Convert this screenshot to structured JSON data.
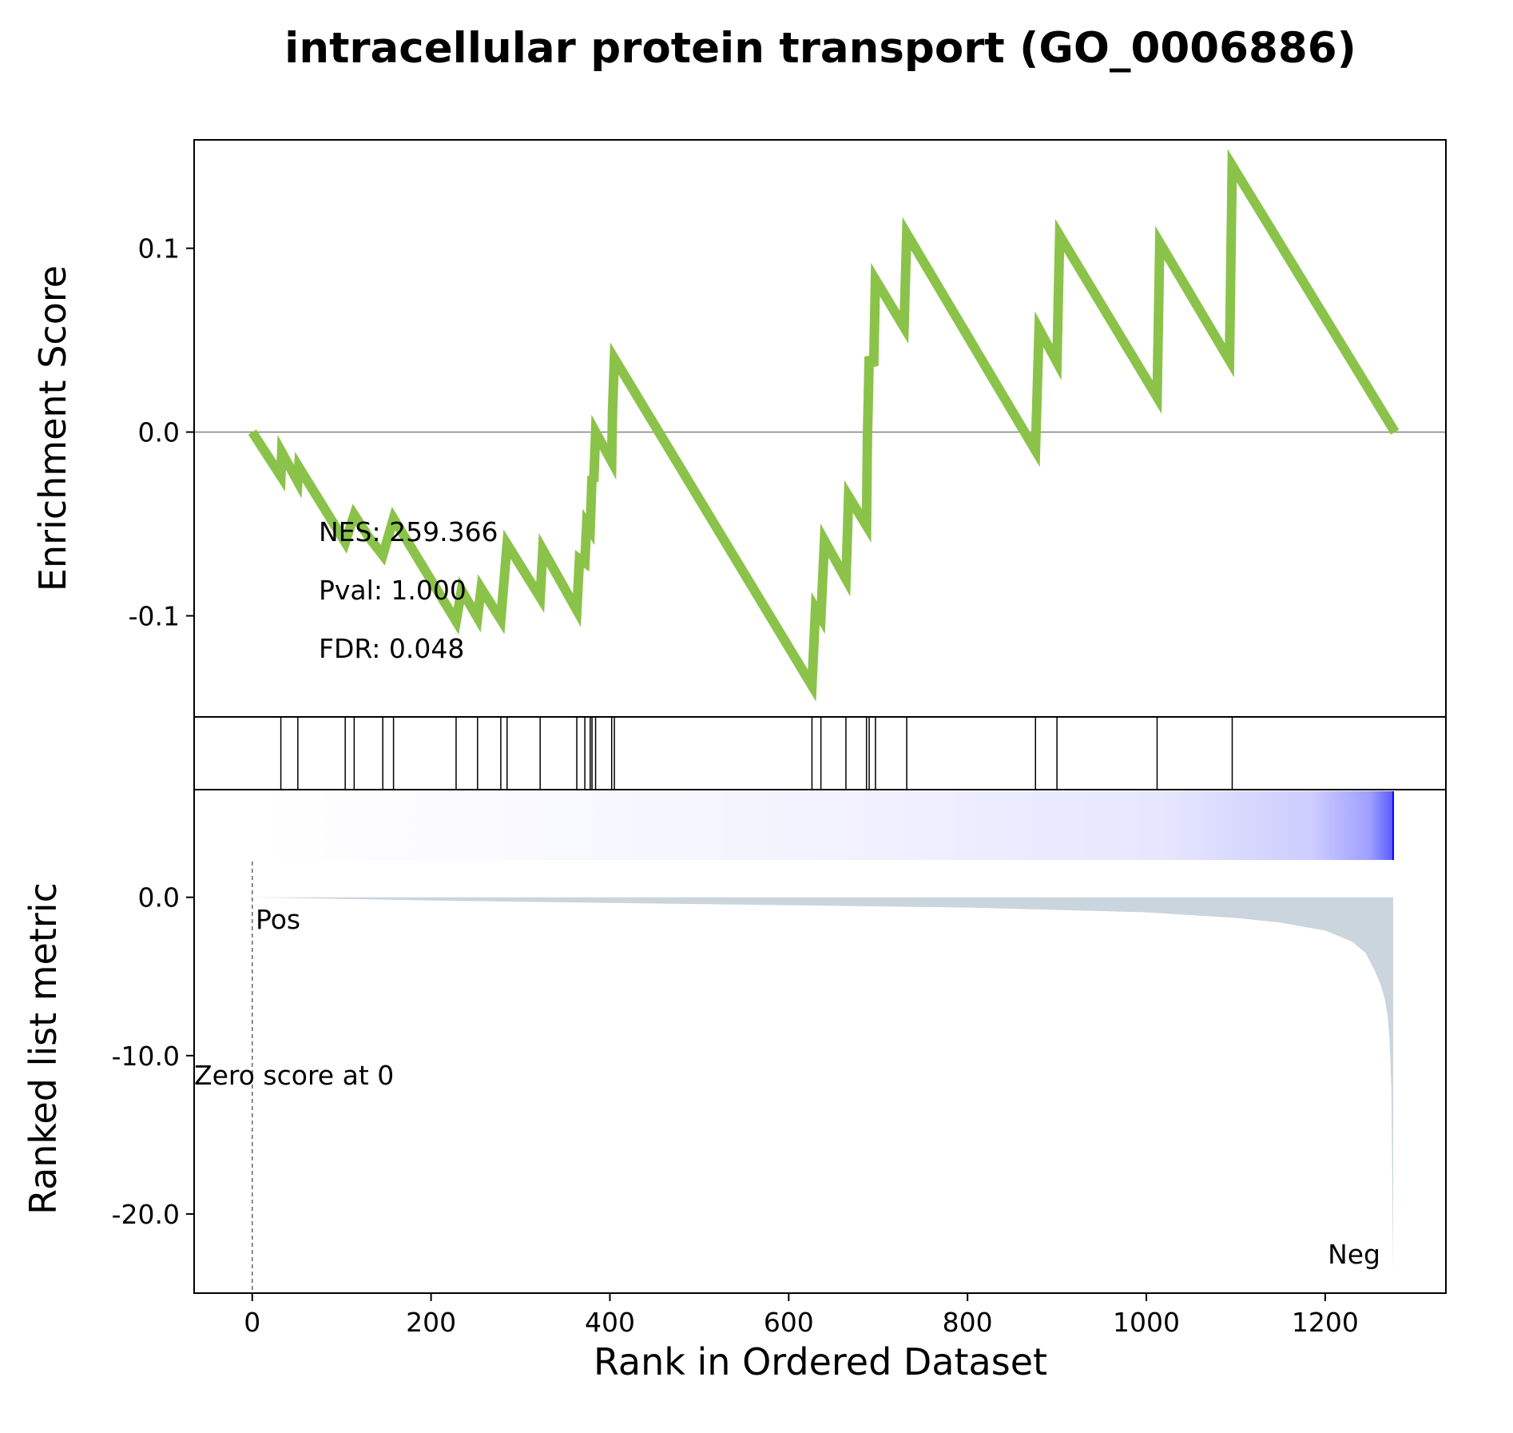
{
  "chart_data": {
    "type": "line",
    "title": "intracellular protein transport (GO_0006886)",
    "xlabel": "Rank in Ordered Dataset",
    "xlim": [
      -65,
      1335
    ],
    "xticks": [
      0,
      200,
      400,
      600,
      800,
      1000,
      1200
    ],
    "enrichment": {
      "ylabel": "Enrichment Score",
      "ylim": [
        -0.155,
        0.159
      ],
      "yticks": [
        0.1,
        0.0,
        -0.1
      ],
      "ytick_labels": [
        "0.1",
        "0.0",
        "-0.1"
      ],
      "zero_line": true,
      "line_color": "#8bc34a",
      "points": [
        [
          0,
          0.0
        ],
        [
          32,
          -0.024
        ],
        [
          33,
          -0.011
        ],
        [
          51,
          -0.027
        ],
        [
          52,
          -0.019
        ],
        [
          104,
          -0.06
        ],
        [
          114,
          -0.045
        ],
        [
          130,
          -0.057
        ],
        [
          146,
          -0.067
        ],
        [
          158,
          -0.047
        ],
        [
          228,
          -0.103
        ],
        [
          234,
          -0.086
        ],
        [
          252,
          -0.101
        ],
        [
          256,
          -0.085
        ],
        [
          278,
          -0.102
        ],
        [
          285,
          -0.061
        ],
        [
          322,
          -0.09
        ],
        [
          325,
          -0.064
        ],
        [
          363,
          -0.097
        ],
        [
          366,
          -0.069
        ],
        [
          372,
          -0.071
        ],
        [
          374,
          -0.05
        ],
        [
          378,
          -0.053
        ],
        [
          380,
          -0.024
        ],
        [
          382,
          -0.027
        ],
        [
          384,
          0.0
        ],
        [
          402,
          -0.016
        ],
        [
          403,
          0.012
        ],
        [
          405,
          0.04
        ],
        [
          626,
          -0.138
        ],
        [
          630,
          -0.096
        ],
        [
          636,
          -0.101
        ],
        [
          640,
          -0.059
        ],
        [
          664,
          -0.08
        ],
        [
          667,
          -0.035
        ],
        [
          687,
          -0.051
        ],
        [
          688,
          -0.004
        ],
        [
          690,
          0.041
        ],
        [
          695,
          0.036
        ],
        [
          697,
          0.083
        ],
        [
          729,
          0.057
        ],
        [
          732,
          0.108
        ],
        [
          876,
          -0.01
        ],
        [
          880,
          0.056
        ],
        [
          900,
          0.038
        ],
        [
          903,
          0.107
        ],
        [
          1012,
          0.019
        ],
        [
          1015,
          0.103
        ],
        [
          1093,
          0.039
        ],
        [
          1096,
          0.145
        ],
        [
          1278,
          0.0
        ]
      ],
      "hits": [
        32,
        51,
        104,
        114,
        146,
        158,
        228,
        252,
        278,
        285,
        322,
        363,
        372,
        378,
        380,
        384,
        402,
        405,
        626,
        636,
        664,
        687,
        690,
        697,
        732,
        876,
        900,
        1012,
        1096
      ],
      "annotations": [
        "NES: 259.366",
        "Pval: 1.000",
        "FDR: 0.048"
      ]
    },
    "ranked_metric": {
      "ylabel": "Ranked list metric",
      "ylim": [
        -25.0,
        6.8
      ],
      "yticks": [
        0.0,
        -10.0,
        -20.0
      ],
      "ytick_labels": [
        "0.0",
        "-10.0",
        "-20.0"
      ],
      "fill_color": "#cbd5dd",
      "curve": [
        [
          0,
          0.0
        ],
        [
          200,
          -0.2
        ],
        [
          400,
          -0.35
        ],
        [
          600,
          -0.5
        ],
        [
          800,
          -0.65
        ],
        [
          1000,
          -0.95
        ],
        [
          1100,
          -1.3
        ],
        [
          1150,
          -1.6
        ],
        [
          1200,
          -2.1
        ],
        [
          1230,
          -2.8
        ],
        [
          1245,
          -3.5
        ],
        [
          1255,
          -4.6
        ],
        [
          1262,
          -5.5
        ],
        [
          1267,
          -6.5
        ],
        [
          1270,
          -7.5
        ],
        [
          1272,
          -9.0
        ],
        [
          1274,
          -12.0
        ],
        [
          1276,
          -24.0
        ]
      ],
      "heat_color": "#0000ff",
      "zero_score_rank": 0,
      "pos_label": "Pos",
      "neg_label": "Neg",
      "pos_color": "#ff0000",
      "neg_color": "#0000ff",
      "zero_label": "Zero score at 0"
    }
  }
}
